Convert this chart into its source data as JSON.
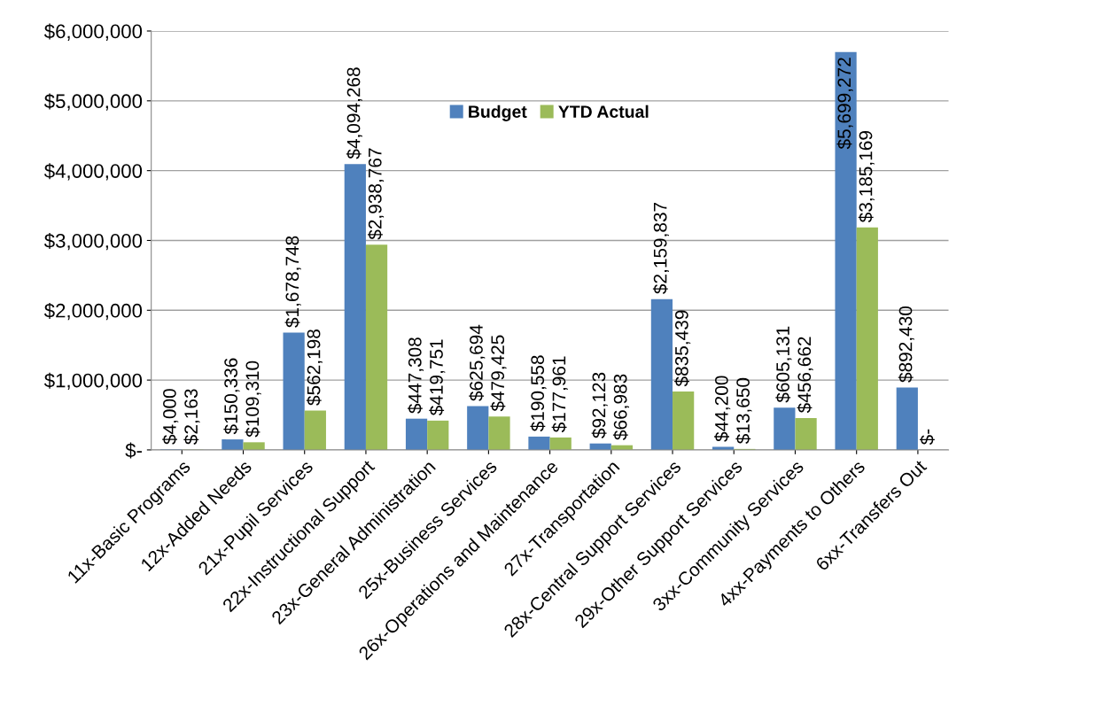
{
  "chart_data": {
    "type": "bar",
    "categories": [
      "11x-Basic Programs",
      "12x-Added Needs",
      "21x-Pupil Services",
      "22x-Instructional Support",
      "23x-General Administration",
      "25x-Business Services",
      "26x-Operations and Maintenance",
      "27x-Transportation",
      "28x-Central Support Services",
      "29x-Other Support Services",
      "3xx-Community Services",
      "4xx-Payments to Others",
      "6xx-Transfers Out"
    ],
    "series": [
      {
        "name": "Budget",
        "color": "#4f81bd",
        "values": [
          4000,
          150336,
          1678748,
          4094268,
          447308,
          625694,
          190558,
          92123,
          2159837,
          44200,
          605131,
          5699272,
          892430
        ],
        "value_labels": [
          "$4,000",
          "$150,336",
          "$1,678,748",
          "$4,094,268",
          "$447,308",
          "$625,694",
          "$190,558",
          "$92,123",
          "$2,159,837",
          "$44,200",
          "$605,131",
          "$5,699,272",
          "$892,430"
        ]
      },
      {
        "name": "YTD Actual",
        "color": "#9bbb59",
        "values": [
          2163,
          109310,
          562198,
          2938767,
          419751,
          479425,
          177961,
          66983,
          835439,
          13650,
          456662,
          3185169,
          0
        ],
        "value_labels": [
          "$2,163",
          "$109,310",
          "$562,198",
          "$2,938,767",
          "$419,751",
          "$479,425",
          "$177,961",
          "$66,983",
          "$835,439",
          "$13,650",
          "$456,662",
          "$3,185,169",
          "$-"
        ]
      }
    ],
    "ylim": [
      0,
      6000000
    ],
    "yticks": [
      {
        "value": 0,
        "label": "$-"
      },
      {
        "value": 1000000,
        "label": "$1,000,000"
      },
      {
        "value": 2000000,
        "label": "$2,000,000"
      },
      {
        "value": 3000000,
        "label": "$3,000,000"
      },
      {
        "value": 4000000,
        "label": "$4,000,000"
      },
      {
        "value": 5000000,
        "label": "$5,000,000"
      },
      {
        "value": 6000000,
        "label": "$6,000,000"
      }
    ],
    "grid": "y",
    "legend": "top"
  }
}
